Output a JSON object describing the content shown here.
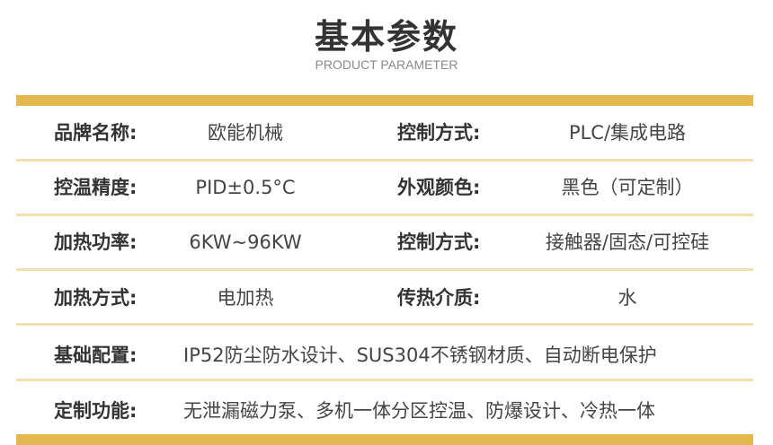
{
  "title": "基本参数",
  "subtitle": "PRODUCT PARAMETER",
  "accent_color": "#e3b84e",
  "rows": [
    {
      "label1": "品牌名称:",
      "value1": "欧能机械",
      "label2": "控制方式:",
      "value2": "PLC/集成电路"
    },
    {
      "label1": "控温精度:",
      "value1": "PID±0.5°C",
      "label2": "外观颜色:",
      "value2": "黑色（可定制）"
    },
    {
      "label1": "加热功率:",
      "value1": "6KW~96KW",
      "label2": "控制方式:",
      "value2": "接触器/固态/可控硅"
    },
    {
      "label1": "加热方式:",
      "value1": "电加热",
      "label2": "传热介质:",
      "value2": "水"
    }
  ],
  "full_rows": [
    {
      "label": "基础配置:",
      "value": "IP52防尘防水设计、SUS304不锈钢材质、自动断电保护"
    },
    {
      "label": "定制功能:",
      "value": "无泄漏磁力泵、多机一体分区控温、防爆设计、冷热一体"
    }
  ]
}
